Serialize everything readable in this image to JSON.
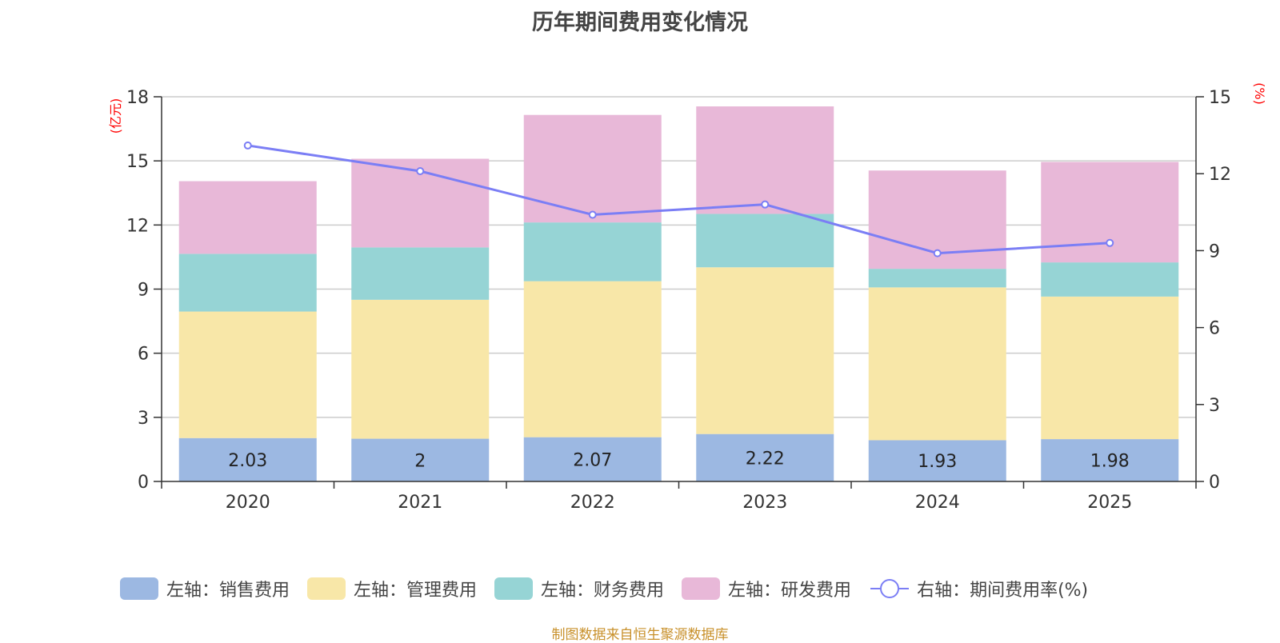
{
  "title": "历年期间费用变化情况",
  "source": "制图数据来自恒生聚源数据库",
  "legend": [
    {
      "label": "左轴：销售费用",
      "color": "#9cb8e2",
      "type": "bar"
    },
    {
      "label": "左轴：管理费用",
      "color": "#f8e7a8",
      "type": "bar"
    },
    {
      "label": "左轴：财务费用",
      "color": "#96d4d5",
      "type": "bar"
    },
    {
      "label": "左轴：研发费用",
      "color": "#e8b8d8",
      "type": "bar"
    },
    {
      "label": "右轴：期间费用率(%)",
      "color": "#7b7ef5",
      "type": "line"
    }
  ],
  "chart_data": {
    "type": "bar",
    "stacked": true,
    "title": "历年期间费用变化情况",
    "categories": [
      "2020",
      "2021",
      "2022",
      "2023",
      "2024",
      "2025"
    ],
    "left_axis": {
      "unit": "(亿元)",
      "range": [
        0,
        18
      ],
      "ticks": [
        "0",
        "3",
        "6",
        "9",
        "12",
        "15",
        "18"
      ]
    },
    "right_axis": {
      "unit": "(%)",
      "range": [
        0,
        15
      ],
      "ticks": [
        "0",
        "3",
        "6",
        "9",
        "12",
        "15"
      ]
    },
    "series": [
      {
        "name": "左轴：销售费用",
        "axis": "left",
        "color": "#9cb8e2",
        "values": [
          2.03,
          2,
          2.07,
          2.22,
          1.93,
          1.98
        ],
        "labels": [
          "2.03",
          "2",
          "2.07",
          "2.22",
          "1.93",
          "1.98"
        ]
      },
      {
        "name": "左轴：管理费用",
        "axis": "left",
        "color": "#f8e7a8",
        "values": [
          5.92,
          6.5,
          7.3,
          7.8,
          7.15,
          6.67
        ]
      },
      {
        "name": "左轴：财务费用",
        "axis": "left",
        "color": "#96d4d5",
        "values": [
          2.7,
          2.45,
          2.75,
          2.5,
          0.87,
          1.6
        ]
      },
      {
        "name": "左轴：研发费用",
        "axis": "left",
        "color": "#e8b8d8",
        "values": [
          3.4,
          4.15,
          5.03,
          5.03,
          4.6,
          4.7
        ]
      },
      {
        "name": "右轴：期间费用率(%)",
        "axis": "right",
        "type": "line",
        "color": "#7b7ef5",
        "values": [
          13.1,
          12.1,
          10.4,
          10.8,
          8.9,
          9.3
        ]
      }
    ],
    "grid": true,
    "legend_position": "bottom"
  }
}
